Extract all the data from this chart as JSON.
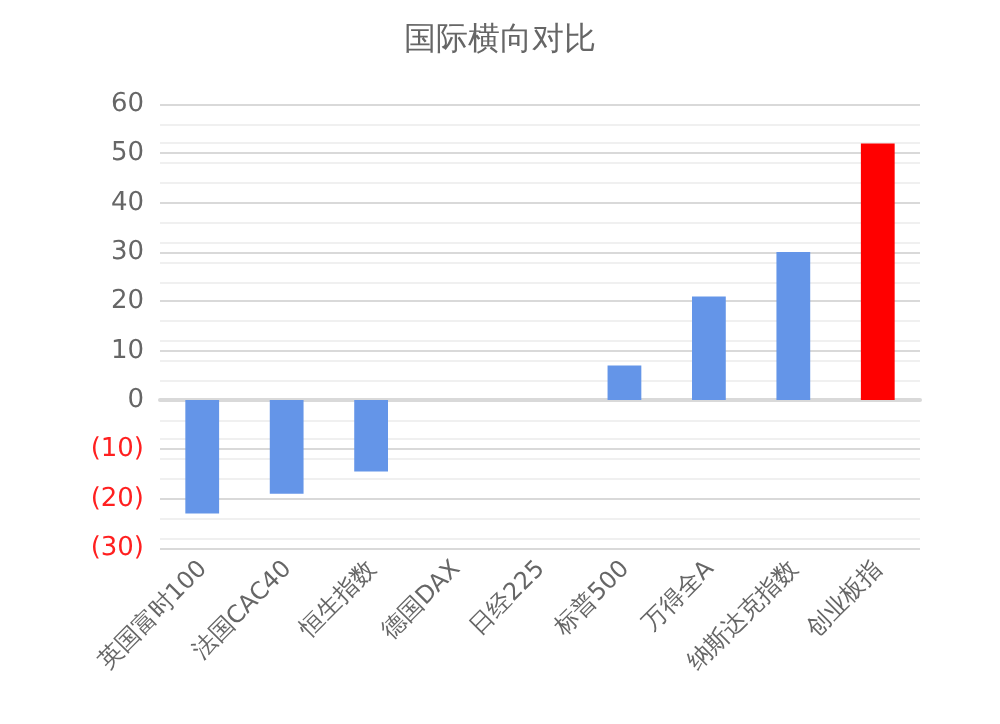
{
  "chart_data": {
    "type": "bar",
    "title": "国际横向对比",
    "categories": [
      "英国富时100",
      "法国CAC40",
      "恒生指数",
      "德国DAX",
      "日经225",
      "标普500",
      "万得全A",
      "纳斯达克指数",
      "创业板指"
    ],
    "values": [
      -23,
      -19,
      -14.5,
      null,
      null,
      7,
      21,
      30,
      52
    ],
    "colors": [
      "#6495e8",
      "#6495e8",
      "#6495e8",
      "#6495e8",
      "#6495e8",
      "#6495e8",
      "#6495e8",
      "#6495e8",
      "#ff0000"
    ],
    "ylim": [
      -30,
      60
    ],
    "yticks": [
      {
        "value": -30,
        "label": "(30)"
      },
      {
        "value": -20,
        "label": "(20)"
      },
      {
        "value": -10,
        "label": "(10)"
      },
      0,
      10,
      20,
      30,
      40,
      50,
      60
    ],
    "grid": "y"
  }
}
